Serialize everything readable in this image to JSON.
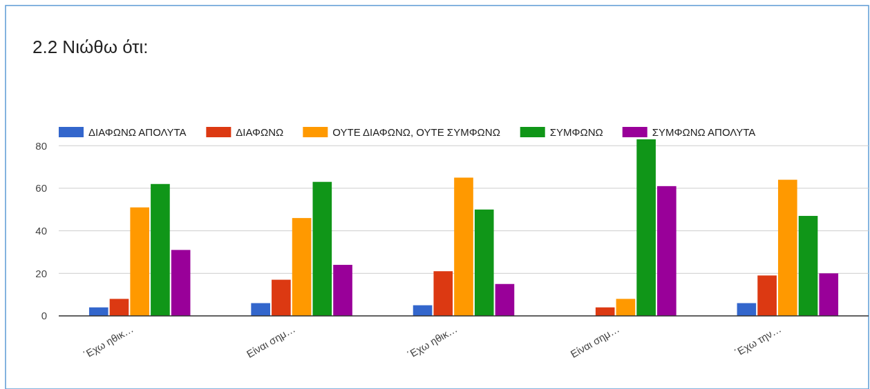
{
  "chart_data": {
    "type": "bar",
    "title": "2.2 Νιώθω ότι:",
    "categories": [
      "΄Εχω ηθικ…",
      "Είναι σημ…",
      "΄Εχω ηθικ…",
      "Είναι σημ…",
      "΄Εχω την…"
    ],
    "series": [
      {
        "name": "ΔΙΑΦΩΝΩ ΑΠΟΛΥΤΑ",
        "color": "#3366cc",
        "values": [
          4,
          6,
          5,
          0,
          6
        ]
      },
      {
        "name": "ΔΙΑΦΩΝΩ",
        "color": "#dc3912",
        "values": [
          8,
          17,
          21,
          4,
          19
        ]
      },
      {
        "name": "ΟΥΤΕ ΔΙΑΦΩΝΩ, ΟΥΤΕ ΣΥΜΦΩΝΩ",
        "color": "#ff9900",
        "values": [
          51,
          46,
          65,
          8,
          64
        ]
      },
      {
        "name": "ΣΥΜΦΩΝΩ",
        "color": "#109618",
        "values": [
          62,
          63,
          50,
          83,
          47
        ]
      },
      {
        "name": "ΣΥΜΦΩΝΩ ΑΠΟΛΥΤΑ",
        "color": "#990099",
        "values": [
          31,
          24,
          15,
          61,
          20
        ]
      }
    ],
    "ylim": [
      0,
      83
    ],
    "yticks": [
      0,
      20,
      40,
      60,
      80
    ],
    "grid": "y",
    "legend": "top"
  }
}
